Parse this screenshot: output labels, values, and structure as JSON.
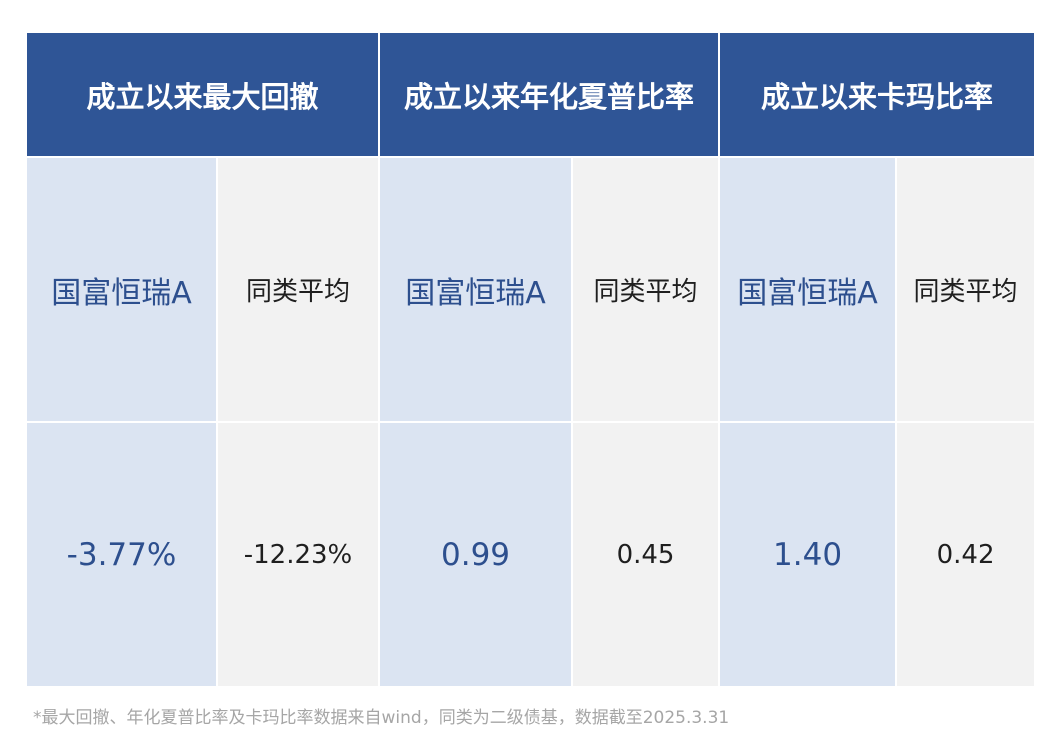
{
  "headers": [
    "成立以来最大回撤",
    "成立以来年化夏普比率",
    "成立以来卡玛比率"
  ],
  "fund_name": "国富恒瑞A",
  "peer_label": "同类平均",
  "metrics": [
    {
      "fund_value": "-3.77%",
      "peer_value": "-12.23%"
    },
    {
      "fund_value": "0.99",
      "peer_value": "0.45"
    },
    {
      "fund_value": "1.40",
      "peer_value": "0.42"
    }
  ],
  "footnote": "*最大回撤、年化夏普比率及卡玛比率数据来自wind，同类为二级债基，数据截至2025.3.31",
  "colors": {
    "header_bg": "#2f5596",
    "fund_cell_bg": "#dbe4f2",
    "peer_cell_bg": "#f2f2f2",
    "fund_text": "#2d4f8e",
    "footnote_text": "#a6a6a6"
  }
}
